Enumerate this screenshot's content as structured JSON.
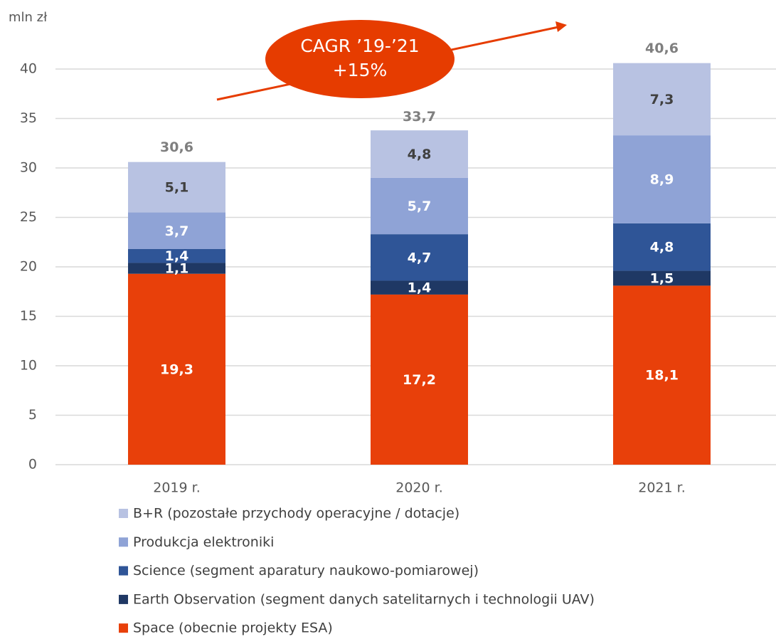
{
  "chart_data": {
    "type": "stacked_bar",
    "y_axis_label": "mln zł",
    "categories": [
      "2019 r.",
      "2020 r.",
      "2021 r."
    ],
    "series": [
      {
        "name": "Space (obecnie projekty ESA)",
        "color": "#e8400a",
        "label_color": "#ffffff",
        "values": [
          19.3,
          17.2,
          18.1
        ],
        "value_labels": [
          "19,3",
          "17,2",
          "18,1"
        ]
      },
      {
        "name": "Earth Observation (segment danych satelitarnych i technologii UAV)",
        "color": "#1f3864",
        "label_color": "#ffffff",
        "values": [
          1.1,
          1.4,
          1.5
        ],
        "value_labels": [
          "1,1",
          "1,4",
          "1,5"
        ]
      },
      {
        "name": "Science (segment aparatury naukowo-pomiarowej)",
        "color": "#2f5597",
        "label_color": "#ffffff",
        "values": [
          1.4,
          4.7,
          4.8
        ],
        "value_labels": [
          "1,4",
          "4,7",
          "4,8"
        ]
      },
      {
        "name": "Produkcja elektroniki",
        "color": "#8fa3d6",
        "label_color": "#ffffff",
        "values": [
          3.7,
          5.7,
          8.9
        ],
        "value_labels": [
          "3,7",
          "5,7",
          "8,9"
        ]
      },
      {
        "name": "B+R (pozostałe przychody operacyjne / dotacje)",
        "color": "#b8c2e2",
        "label_color": "#404040",
        "values": [
          5.1,
          4.8,
          7.3
        ],
        "value_labels": [
          "5,1",
          "4,8",
          "7,3"
        ]
      }
    ],
    "totals": [
      30.6,
      33.7,
      40.6
    ],
    "total_labels": [
      "30,6",
      "33,7",
      "40,6"
    ],
    "ylim": [
      0,
      40
    ],
    "yticks": [
      0,
      5,
      10,
      15,
      20,
      25,
      30,
      35,
      40
    ],
    "grid": true,
    "annotation": [
      "CAGR ’19-’21",
      "+15%"
    ],
    "annotation_color": "#e63c00"
  }
}
